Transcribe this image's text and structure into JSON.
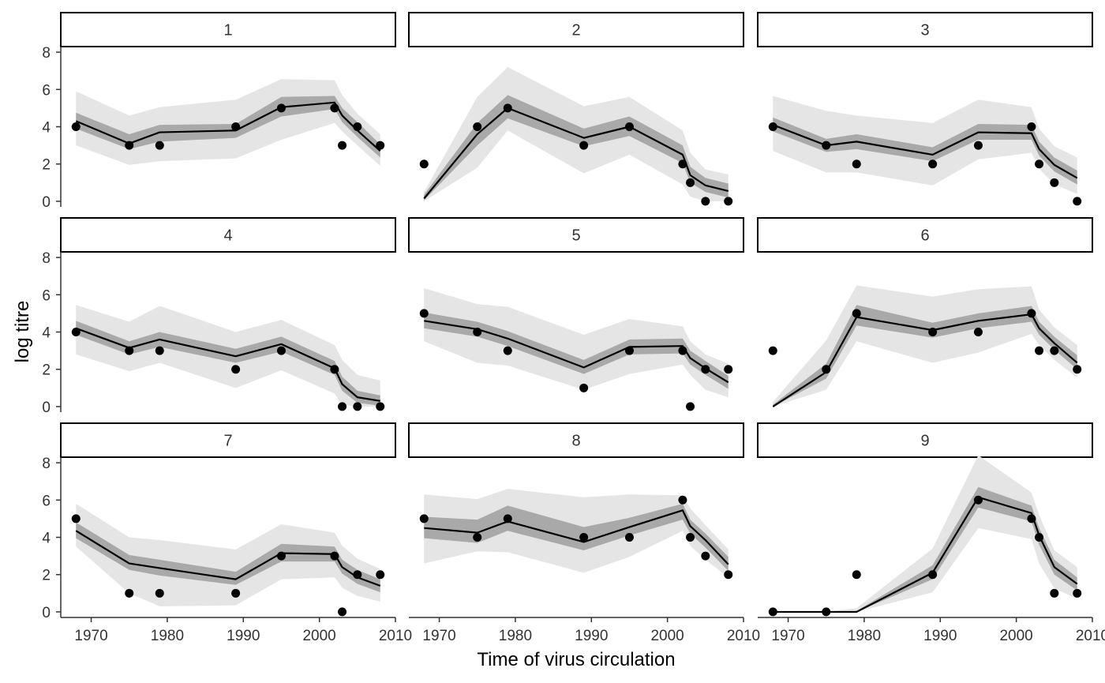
{
  "chart_data": {
    "type": "line",
    "layout": "faceted 3x3",
    "xlabel": "Time of virus circulation",
    "ylabel": "log titre",
    "xlim": [
      1966,
      2010
    ],
    "ylim": [
      -0.3,
      8.3
    ],
    "x_ticks": [
      1970,
      1980,
      1990,
      2000,
      2010
    ],
    "y_ticks": [
      0,
      2,
      4,
      6,
      8
    ],
    "grid": false,
    "legend": "none",
    "colors": {
      "line": "#000000",
      "points": "#000000",
      "inner_band": "#a9a9a9",
      "outer_band": "#e5e5e5",
      "strip_fill": "#ffffff",
      "strip_border": "#000000",
      "axis": "#333333"
    },
    "x": [
      1968,
      1975,
      1979,
      1989,
      1995,
      2002,
      2003,
      2005,
      2008
    ],
    "panels": [
      {
        "label": "1",
        "points": [
          [
            1968,
            4
          ],
          [
            1975,
            3
          ],
          [
            1979,
            3
          ],
          [
            1989,
            4
          ],
          [
            1995,
            5
          ],
          [
            2002,
            5
          ],
          [
            2003,
            3
          ],
          [
            2005,
            4
          ],
          [
            2008,
            3
          ]
        ],
        "fit": [
          4.3,
          3.1,
          3.7,
          3.8,
          5.05,
          5.3,
          4.6,
          3.8,
          2.7
        ],
        "inner_lo": [
          3.9,
          2.8,
          3.2,
          3.4,
          4.55,
          4.95,
          4.25,
          3.45,
          2.35
        ],
        "inner_hi": [
          4.75,
          3.6,
          4.1,
          4.15,
          5.6,
          5.65,
          5.0,
          4.25,
          3.05
        ],
        "outer_lo": [
          3.0,
          1.95,
          2.15,
          2.3,
          3.3,
          4.2,
          3.75,
          3.0,
          1.9
        ],
        "outer_hi": [
          5.9,
          4.6,
          5.05,
          5.45,
          6.55,
          6.5,
          5.7,
          4.7,
          3.6
        ]
      },
      {
        "label": "2",
        "points": [
          [
            1968,
            2
          ],
          [
            1975,
            4
          ],
          [
            1979,
            5
          ],
          [
            1989,
            3
          ],
          [
            1995,
            4
          ],
          [
            2002,
            2
          ],
          [
            2003,
            1
          ],
          [
            2005,
            0
          ],
          [
            2008,
            0
          ]
        ],
        "fit": [
          0.15,
          3.6,
          5.0,
          3.4,
          4.0,
          2.5,
          1.4,
          0.85,
          0.55
        ],
        "inner_lo": [
          0.05,
          3.0,
          4.45,
          2.95,
          3.5,
          2.05,
          1.0,
          0.5,
          0.2
        ],
        "inner_hi": [
          0.35,
          4.2,
          5.7,
          3.9,
          4.55,
          3.0,
          1.85,
          1.25,
          0.95
        ],
        "outer_lo": [
          0.0,
          1.8,
          3.8,
          1.5,
          2.5,
          0.9,
          0.25,
          0.0,
          0.0
        ],
        "outer_hi": [
          0.5,
          5.6,
          7.2,
          5.1,
          5.6,
          3.8,
          2.6,
          1.7,
          1.45
        ]
      },
      {
        "label": "3",
        "points": [
          [
            1968,
            4
          ],
          [
            1975,
            3
          ],
          [
            1979,
            2
          ],
          [
            1989,
            2
          ],
          [
            1995,
            3
          ],
          [
            2002,
            4
          ],
          [
            2003,
            2
          ],
          [
            2005,
            1
          ],
          [
            2008,
            0
          ]
        ],
        "fit": [
          4.1,
          3.0,
          3.2,
          2.5,
          3.7,
          3.65,
          2.8,
          1.95,
          1.25
        ],
        "inner_lo": [
          3.75,
          2.65,
          2.8,
          2.15,
          3.3,
          3.3,
          2.45,
          1.6,
          0.9
        ],
        "inner_hi": [
          4.5,
          3.35,
          3.6,
          2.9,
          4.15,
          4.1,
          3.2,
          2.35,
          1.65
        ],
        "outer_lo": [
          2.7,
          1.55,
          1.55,
          0.85,
          2.25,
          2.6,
          1.75,
          0.9,
          0.4
        ],
        "outer_hi": [
          5.65,
          4.85,
          4.6,
          4.2,
          5.45,
          5.05,
          3.9,
          2.95,
          2.35
        ]
      },
      {
        "label": "4",
        "points": [
          [
            1968,
            4
          ],
          [
            1975,
            3
          ],
          [
            1979,
            3
          ],
          [
            1989,
            2
          ],
          [
            1995,
            3
          ],
          [
            2002,
            2
          ],
          [
            2003,
            0
          ],
          [
            2005,
            0
          ],
          [
            2008,
            0
          ]
        ],
        "fit": [
          4.2,
          3.15,
          3.6,
          2.7,
          3.35,
          2.05,
          1.2,
          0.5,
          0.3
        ],
        "inner_lo": [
          3.85,
          2.8,
          3.2,
          2.35,
          2.95,
          1.7,
          0.85,
          0.2,
          0.05
        ],
        "inner_hi": [
          4.6,
          3.5,
          4.0,
          3.1,
          3.75,
          2.45,
          1.6,
          0.85,
          0.6
        ],
        "outer_lo": [
          2.8,
          1.9,
          2.35,
          1.0,
          1.95,
          0.7,
          0.1,
          0.0,
          0.0
        ],
        "outer_hi": [
          5.45,
          4.55,
          5.4,
          4.0,
          4.65,
          3.3,
          2.5,
          1.7,
          1.4
        ]
      },
      {
        "label": "5",
        "points": [
          [
            1968,
            5
          ],
          [
            1975,
            4
          ],
          [
            1979,
            3
          ],
          [
            1989,
            1
          ],
          [
            1995,
            3
          ],
          [
            2002,
            3
          ],
          [
            2003,
            0
          ],
          [
            2005,
            2
          ],
          [
            2008,
            2
          ]
        ],
        "fit": [
          4.6,
          4.15,
          3.65,
          2.1,
          3.2,
          3.25,
          2.6,
          2.05,
          1.3
        ],
        "inner_lo": [
          4.2,
          3.75,
          3.25,
          1.75,
          2.8,
          2.85,
          2.25,
          1.7,
          0.95
        ],
        "inner_hi": [
          5.05,
          4.55,
          4.05,
          2.5,
          3.6,
          3.65,
          3.0,
          2.45,
          1.65
        ],
        "outer_lo": [
          3.5,
          2.35,
          2.2,
          0.9,
          1.75,
          2.25,
          1.7,
          0.9,
          0.5
        ],
        "outer_hi": [
          6.35,
          5.5,
          5.35,
          3.85,
          4.7,
          4.3,
          3.5,
          2.8,
          2.3
        ]
      },
      {
        "label": "6",
        "points": [
          [
            1968,
            3
          ],
          [
            1975,
            2
          ],
          [
            1979,
            5
          ],
          [
            1989,
            4
          ],
          [
            1995,
            4
          ],
          [
            2002,
            5
          ],
          [
            2003,
            3
          ],
          [
            2005,
            3
          ],
          [
            2008,
            2
          ]
        ],
        "fit": [
          0.0,
          1.85,
          4.8,
          4.1,
          4.6,
          4.95,
          4.2,
          3.4,
          2.35
        ],
        "inner_lo": [
          0.0,
          1.5,
          4.35,
          3.7,
          4.2,
          4.55,
          3.85,
          3.05,
          2.0
        ],
        "inner_hi": [
          0.1,
          2.3,
          5.45,
          4.5,
          5.0,
          5.4,
          4.55,
          3.75,
          2.75
        ],
        "outer_lo": [
          0.0,
          0.9,
          3.5,
          2.35,
          2.9,
          3.9,
          3.3,
          2.5,
          1.55
        ],
        "outer_hi": [
          0.25,
          3.55,
          6.5,
          5.9,
          6.3,
          6.45,
          5.2,
          4.25,
          3.3
        ]
      },
      {
        "label": "7",
        "points": [
          [
            1968,
            5
          ],
          [
            1975,
            1
          ],
          [
            1979,
            1
          ],
          [
            1989,
            1
          ],
          [
            1995,
            3
          ],
          [
            2002,
            3
          ],
          [
            2003,
            0
          ],
          [
            2005,
            2
          ],
          [
            2008,
            2
          ]
        ],
        "fit": [
          4.35,
          2.6,
          2.35,
          1.75,
          3.15,
          3.1,
          2.4,
          1.85,
          1.4
        ],
        "inner_lo": [
          3.95,
          2.25,
          1.95,
          1.45,
          2.7,
          2.7,
          2.05,
          1.5,
          1.05
        ],
        "inner_hi": [
          4.8,
          3.05,
          2.8,
          2.15,
          3.65,
          3.5,
          2.8,
          2.25,
          1.75
        ],
        "outer_lo": [
          3.5,
          1.0,
          0.3,
          0.35,
          1.75,
          1.85,
          1.3,
          0.85,
          0.55
        ],
        "outer_hi": [
          5.8,
          4.0,
          3.85,
          3.35,
          4.7,
          4.25,
          3.55,
          2.85,
          2.3
        ]
      },
      {
        "label": "8",
        "points": [
          [
            1968,
            5
          ],
          [
            1975,
            4
          ],
          [
            1979,
            5
          ],
          [
            1989,
            4
          ],
          [
            1995,
            4
          ],
          [
            2002,
            6
          ],
          [
            2003,
            4
          ],
          [
            2005,
            3
          ],
          [
            2008,
            2
          ]
        ],
        "fit": [
          4.5,
          4.25,
          4.85,
          3.75,
          4.55,
          5.45,
          4.6,
          3.85,
          2.55
        ],
        "inner_lo": [
          3.95,
          3.7,
          4.35,
          3.3,
          4.1,
          4.95,
          4.2,
          3.45,
          2.2
        ],
        "inner_hi": [
          5.1,
          4.95,
          5.7,
          4.55,
          5.05,
          5.8,
          4.95,
          4.2,
          2.95
        ],
        "outer_lo": [
          2.6,
          3.25,
          3.2,
          2.1,
          2.95,
          4.35,
          3.55,
          2.8,
          1.85
        ],
        "outer_hi": [
          6.3,
          6.05,
          6.6,
          6.15,
          6.3,
          6.25,
          5.55,
          4.65,
          3.35
        ]
      },
      {
        "label": "9",
        "points": [
          [
            1968,
            0
          ],
          [
            1975,
            0
          ],
          [
            1979,
            2
          ],
          [
            1989,
            2
          ],
          [
            1995,
            6
          ],
          [
            2002,
            5
          ],
          [
            2003,
            4
          ],
          [
            2005,
            1
          ],
          [
            2008,
            1
          ]
        ],
        "fit": [
          0.0,
          0.0,
          0.0,
          2.1,
          6.15,
          5.3,
          4.1,
          2.4,
          1.5
        ],
        "inner_lo": [
          0.0,
          0.0,
          0.0,
          1.75,
          5.6,
          4.85,
          3.6,
          2.0,
          1.15
        ],
        "inner_hi": [
          0.0,
          0.0,
          0.05,
          2.5,
          6.7,
          5.7,
          4.5,
          2.8,
          1.85
        ],
        "outer_lo": [
          0.0,
          0.0,
          0.0,
          1.05,
          4.5,
          3.9,
          2.6,
          1.25,
          0.7
        ],
        "outer_hi": [
          0.0,
          0.0,
          0.2,
          3.4,
          8.4,
          6.4,
          5.2,
          3.3,
          2.4
        ]
      }
    ]
  }
}
